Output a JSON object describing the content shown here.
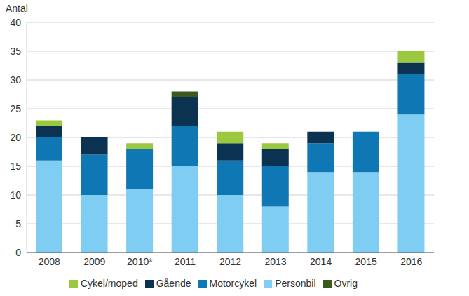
{
  "chart_data": {
    "type": "bar",
    "stacked": true,
    "y_label": "Antal",
    "categories": [
      "2008",
      "2009",
      "2010*",
      "2011",
      "2012",
      "2013",
      "2014",
      "2015",
      "2016"
    ],
    "series": [
      {
        "name": "Personbil",
        "color": "#7fcdf2",
        "values": [
          16,
          10,
          11,
          15,
          10,
          8,
          14,
          14,
          24
        ]
      },
      {
        "name": "Motorcykel",
        "color": "#0f78b4",
        "values": [
          4,
          7,
          7,
          7,
          6,
          7,
          5,
          7,
          7
        ]
      },
      {
        "name": "Gående",
        "color": "#0b3250",
        "values": [
          2,
          3,
          0,
          5,
          3,
          3,
          2,
          0,
          2
        ]
      },
      {
        "name": "Cykel/moped",
        "color": "#9cc83f",
        "values": [
          1,
          0,
          1,
          0,
          2,
          1,
          0,
          0,
          2
        ]
      },
      {
        "name": "Övrig",
        "color": "#3b5a1c",
        "values": [
          0,
          0,
          0,
          1,
          0,
          0,
          0,
          0,
          0
        ]
      }
    ],
    "ylim": [
      0,
      40
    ],
    "yticks": [
      0,
      5,
      10,
      15,
      20,
      25,
      30,
      35,
      40
    ],
    "grid": true,
    "legend": "bottom"
  }
}
